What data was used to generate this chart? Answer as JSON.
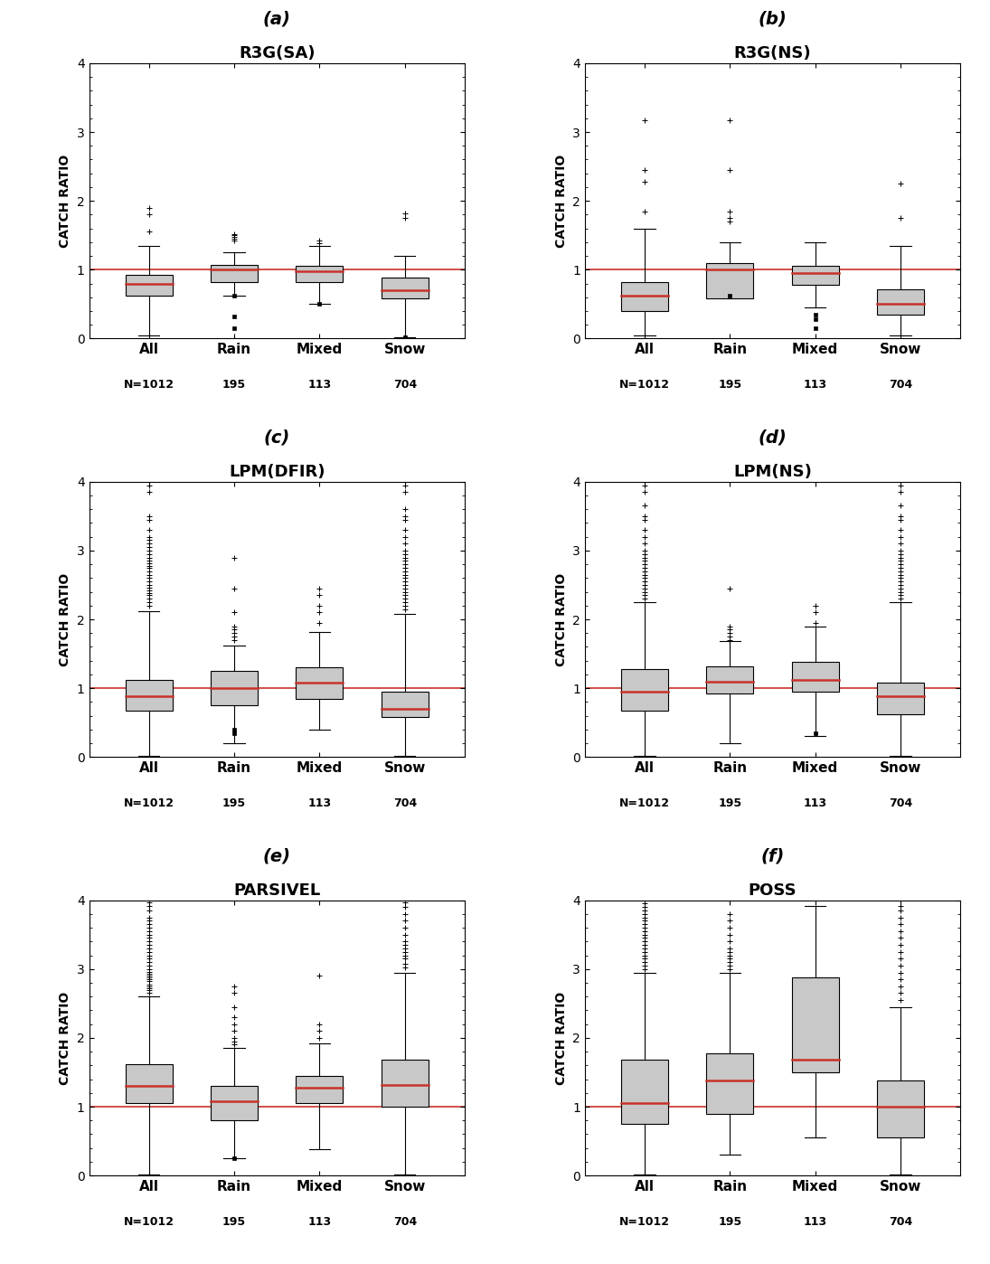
{
  "panels": [
    {
      "label": "(a)",
      "title": "R3G(SA)",
      "boxes": [
        {
          "q1": 0.62,
          "median": 0.8,
          "q3": 0.93,
          "whislo": 0.05,
          "whishi": 1.35,
          "fliers_hi": [
            1.55,
            1.8,
            1.9
          ],
          "fliers_lo": [],
          "fliers_lo_sq": []
        },
        {
          "q1": 0.82,
          "median": 1.0,
          "q3": 1.07,
          "whislo": 0.62,
          "whishi": 1.25,
          "fliers_hi": [
            1.42,
            1.45,
            1.48,
            1.5,
            1.52
          ],
          "fliers_lo": [],
          "fliers_lo_sq": [
            0.62,
            0.15,
            0.32
          ]
        },
        {
          "q1": 0.82,
          "median": 0.98,
          "q3": 1.05,
          "whislo": 0.5,
          "whishi": 1.35,
          "fliers_hi": [
            1.38,
            1.42
          ],
          "fliers_lo": [],
          "fliers_lo_sq": [
            0.5
          ]
        },
        {
          "q1": 0.58,
          "median": 0.7,
          "q3": 0.88,
          "whislo": 0.02,
          "whishi": 1.2,
          "fliers_hi": [
            1.75,
            1.82
          ],
          "fliers_lo": [],
          "fliers_lo_sq": [
            0.02
          ]
        }
      ]
    },
    {
      "label": "(b)",
      "title": "R3G(NS)",
      "boxes": [
        {
          "q1": 0.4,
          "median": 0.62,
          "q3": 0.82,
          "whislo": 0.05,
          "whishi": 1.6,
          "fliers_hi": [
            1.85,
            2.28,
            2.45,
            3.17
          ],
          "fliers_lo": [],
          "fliers_lo_sq": []
        },
        {
          "q1": 0.58,
          "median": 1.0,
          "q3": 1.1,
          "whislo": 0.6,
          "whishi": 1.4,
          "fliers_hi": [
            1.7,
            1.75,
            1.85,
            2.45,
            3.17
          ],
          "fliers_lo": [],
          "fliers_lo_sq": [
            0.62
          ]
        },
        {
          "q1": 0.78,
          "median": 0.95,
          "q3": 1.05,
          "whislo": 0.45,
          "whishi": 1.4,
          "fliers_hi": [],
          "fliers_lo": [],
          "fliers_lo_sq": [
            0.15,
            0.28,
            0.35
          ]
        },
        {
          "q1": 0.35,
          "median": 0.5,
          "q3": 0.72,
          "whislo": 0.05,
          "whishi": 1.35,
          "fliers_hi": [
            1.75,
            2.25
          ],
          "fliers_lo": [],
          "fliers_lo_sq": []
        }
      ]
    },
    {
      "label": "(c)",
      "title": "LPM(DFIR)",
      "boxes": [
        {
          "q1": 0.68,
          "median": 0.88,
          "q3": 1.12,
          "whislo": 0.02,
          "whishi": 2.12,
          "fliers_hi": [
            2.2,
            2.25,
            2.3,
            2.35,
            2.38,
            2.42,
            2.46,
            2.5,
            2.55,
            2.6,
            2.65,
            2.7,
            2.75,
            2.78,
            2.82,
            2.85,
            2.9,
            2.95,
            3.0,
            3.05,
            3.1,
            3.15,
            3.2,
            3.3,
            3.45,
            3.5,
            3.85,
            3.95
          ],
          "fliers_lo": [],
          "fliers_lo_sq": []
        },
        {
          "q1": 0.75,
          "median": 1.0,
          "q3": 1.25,
          "whislo": 0.2,
          "whishi": 1.62,
          "fliers_hi": [
            1.7,
            1.75,
            1.8,
            1.85,
            1.9,
            2.1,
            2.45,
            2.9
          ],
          "fliers_lo": [],
          "fliers_lo_sq": [
            0.35,
            0.4
          ]
        },
        {
          "q1": 0.85,
          "median": 1.08,
          "q3": 1.3,
          "whislo": 0.4,
          "whishi": 1.82,
          "fliers_hi": [
            1.95,
            2.1,
            2.2,
            2.35,
            2.45
          ],
          "fliers_lo": [],
          "fliers_lo_sq": []
        },
        {
          "q1": 0.58,
          "median": 0.7,
          "q3": 0.95,
          "whislo": 0.02,
          "whishi": 2.08,
          "fliers_hi": [
            2.15,
            2.2,
            2.25,
            2.3,
            2.35,
            2.4,
            2.45,
            2.5,
            2.55,
            2.6,
            2.65,
            2.7,
            2.75,
            2.8,
            2.85,
            2.9,
            2.95,
            3.0,
            3.1,
            3.2,
            3.3,
            3.45,
            3.5,
            3.6,
            3.85,
            3.95
          ],
          "fliers_lo": [],
          "fliers_lo_sq": []
        }
      ]
    },
    {
      "label": "(d)",
      "title": "LPM(NS)",
      "boxes": [
        {
          "q1": 0.68,
          "median": 0.95,
          "q3": 1.28,
          "whislo": 0.02,
          "whishi": 2.25,
          "fliers_hi": [
            2.3,
            2.35,
            2.4,
            2.45,
            2.5,
            2.55,
            2.6,
            2.65,
            2.7,
            2.75,
            2.8,
            2.85,
            2.9,
            2.95,
            3.0,
            3.1,
            3.2,
            3.3,
            3.45,
            3.5,
            3.65,
            3.85,
            3.95,
            4.0
          ],
          "fliers_lo": [],
          "fliers_lo_sq": []
        },
        {
          "q1": 0.92,
          "median": 1.1,
          "q3": 1.32,
          "whislo": 0.2,
          "whishi": 1.68,
          "fliers_hi": [
            1.7,
            1.75,
            1.8,
            1.85,
            1.9,
            2.45
          ],
          "fliers_lo": [],
          "fliers_lo_sq": []
        },
        {
          "q1": 0.95,
          "median": 1.12,
          "q3": 1.38,
          "whislo": 0.3,
          "whishi": 1.9,
          "fliers_hi": [
            1.95,
            2.1,
            2.2
          ],
          "fliers_lo": [],
          "fliers_lo_sq": [
            0.35
          ]
        },
        {
          "q1": 0.62,
          "median": 0.88,
          "q3": 1.08,
          "whislo": 0.02,
          "whishi": 2.25,
          "fliers_hi": [
            2.3,
            2.35,
            2.4,
            2.45,
            2.5,
            2.55,
            2.6,
            2.65,
            2.7,
            2.75,
            2.8,
            2.85,
            2.9,
            2.95,
            3.0,
            3.1,
            3.2,
            3.3,
            3.45,
            3.5,
            3.65,
            3.85,
            3.95,
            4.0
          ],
          "fliers_lo": [],
          "fliers_lo_sq": []
        }
      ]
    },
    {
      "label": "(e)",
      "title": "PARSIVEL",
      "boxes": [
        {
          "q1": 1.05,
          "median": 1.3,
          "q3": 1.62,
          "whislo": 0.02,
          "whishi": 2.6,
          "fliers_hi": [
            2.65,
            2.7,
            2.72,
            2.75,
            2.78,
            2.82,
            2.85,
            2.88,
            2.9,
            2.93,
            2.96,
            3.0,
            3.05,
            3.1,
            3.15,
            3.2,
            3.25,
            3.3,
            3.35,
            3.4,
            3.45,
            3.5,
            3.55,
            3.6,
            3.65,
            3.7,
            3.75,
            3.85,
            3.92,
            3.97
          ],
          "fliers_lo": [],
          "fliers_lo_sq": []
        },
        {
          "q1": 0.8,
          "median": 1.08,
          "q3": 1.3,
          "whislo": 0.25,
          "whishi": 1.85,
          "fliers_hi": [
            1.9,
            1.95,
            2.0,
            2.1,
            2.2,
            2.3,
            2.45,
            2.65,
            2.75
          ],
          "fliers_lo": [],
          "fliers_lo_sq": [
            0.25
          ]
        },
        {
          "q1": 1.05,
          "median": 1.28,
          "q3": 1.45,
          "whislo": 0.38,
          "whishi": 1.92,
          "fliers_hi": [
            2.0,
            2.1,
            2.2,
            2.9
          ],
          "fliers_lo": [],
          "fliers_lo_sq": []
        },
        {
          "q1": 1.0,
          "median": 1.32,
          "q3": 1.68,
          "whislo": 0.02,
          "whishi": 2.95,
          "fliers_hi": [
            3.02,
            3.08,
            3.15,
            3.2,
            3.25,
            3.3,
            3.35,
            3.4,
            3.5,
            3.6,
            3.7,
            3.8,
            3.9,
            3.97
          ],
          "fliers_lo": [],
          "fliers_lo_sq": []
        }
      ]
    },
    {
      "label": "(f)",
      "title": "POSS",
      "boxes": [
        {
          "q1": 0.75,
          "median": 1.05,
          "q3": 1.68,
          "whislo": 0.02,
          "whishi": 2.95,
          "fliers_hi": [
            3.0,
            3.05,
            3.1,
            3.15,
            3.2,
            3.25,
            3.3,
            3.35,
            3.4,
            3.45,
            3.5,
            3.55,
            3.6,
            3.65,
            3.7,
            3.75,
            3.8,
            3.85,
            3.9,
            3.95,
            4.0
          ],
          "fliers_lo": [],
          "fliers_lo_sq": []
        },
        {
          "q1": 0.9,
          "median": 1.38,
          "q3": 1.78,
          "whislo": 0.3,
          "whishi": 2.95,
          "fliers_hi": [
            3.0,
            3.05,
            3.1,
            3.15,
            3.2,
            3.25,
            3.3,
            3.4,
            3.5,
            3.6,
            3.7,
            3.8
          ],
          "fliers_lo": [],
          "fliers_lo_sq": []
        },
        {
          "q1": 1.5,
          "median": 1.68,
          "q3": 2.88,
          "whislo": 0.55,
          "whishi": 3.92,
          "fliers_hi": [],
          "fliers_lo": [],
          "fliers_lo_sq": []
        },
        {
          "q1": 0.55,
          "median": 1.0,
          "q3": 1.38,
          "whislo": 0.02,
          "whishi": 2.45,
          "fliers_hi": [
            2.55,
            2.65,
            2.75,
            2.85,
            2.95,
            3.05,
            3.15,
            3.25,
            3.35,
            3.45,
            3.55,
            3.65,
            3.75,
            3.85,
            3.92
          ],
          "fliers_lo": [],
          "fliers_lo_sq": []
        }
      ]
    }
  ],
  "categories": [
    "All",
    "Rain",
    "Mixed",
    "Snow"
  ],
  "sample_sizes": [
    "N=1012",
    "195",
    "113",
    "704"
  ],
  "ylabel": "CATCH RATIO",
  "ylim": [
    0,
    4
  ],
  "yticks": [
    0,
    1,
    2,
    3,
    4
  ],
  "box_color": "#c8c8c8",
  "median_color": "#c8322a",
  "whisker_color": "#000000",
  "flier_color": "#000000",
  "refline_color": "#c8322a",
  "refline_y": 1.0,
  "background_color": "#ffffff",
  "panel_label_fontsize": 14,
  "title_fontsize": 13,
  "tick_fontsize": 10,
  "label_fontsize": 10
}
